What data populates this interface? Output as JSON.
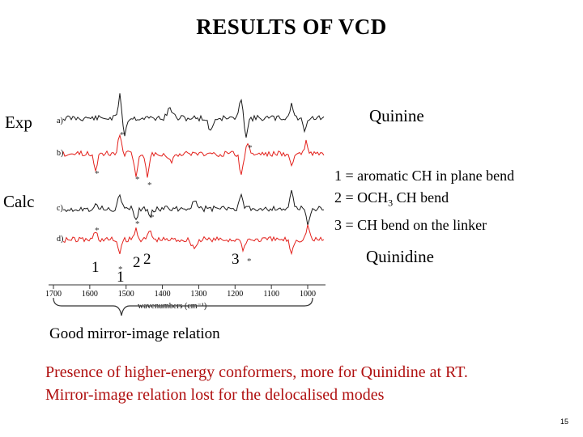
{
  "title": "RESULTS OF VCD",
  "labels": {
    "exp": "Exp",
    "calc": "Calc",
    "quinine": "Quinine",
    "quinidine": "Quinidine"
  },
  "legend": [
    "1 = aromatic CH in plane bend",
    "2 = OCH",
    "3 = CH bend on the linker"
  ],
  "legend_sub": "3",
  "legend_tail": " CH bend",
  "figure": {
    "panel_labels": [
      "a)",
      "b)",
      "c)",
      "d)"
    ],
    "x_ticks": [
      "1700",
      "1600",
      "1500",
      "1400",
      "1300",
      "1200",
      "1100",
      "1000"
    ],
    "x_label": "wavenumbers (cm⁻¹)",
    "band_numbers": [
      "1",
      "1",
      "2",
      "2",
      "3"
    ],
    "colors": {
      "black_trace": "#1a1a1a",
      "red_trace": "#e3201b"
    }
  },
  "caption": "Good mirror-image relation",
  "notes": [
    "Presence of higher-energy conformers, more for Quinidine at RT.",
    "Mirror-image relation lost for the delocalised modes"
  ],
  "notes_color": "#b01010",
  "slide_number": "15"
}
